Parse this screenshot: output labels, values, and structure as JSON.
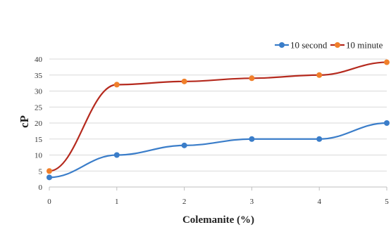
{
  "chart_data": {
    "type": "line",
    "title": "",
    "xlabel": "Colemanite (%)",
    "ylabel": "cP",
    "x": [
      0,
      1,
      2,
      3,
      4,
      5
    ],
    "xlim": [
      0,
      5
    ],
    "ylim": [
      0,
      40
    ],
    "x_ticks": [
      "0",
      "1",
      "2",
      "3",
      "4",
      "5"
    ],
    "y_ticks": [
      "0",
      "5",
      "10",
      "15",
      "20",
      "25",
      "30",
      "35",
      "40"
    ],
    "grid": "horizontal",
    "legend_position": "top-right",
    "series": [
      {
        "name": "10 second",
        "color": "#3a7dc9",
        "values": [
          3,
          10,
          13,
          15,
          15,
          20
        ]
      },
      {
        "name": "10 minute",
        "color": "#b52a1e",
        "marker_color": "#f07f2a",
        "values": [
          5,
          32,
          33,
          34,
          35,
          39
        ]
      }
    ]
  }
}
